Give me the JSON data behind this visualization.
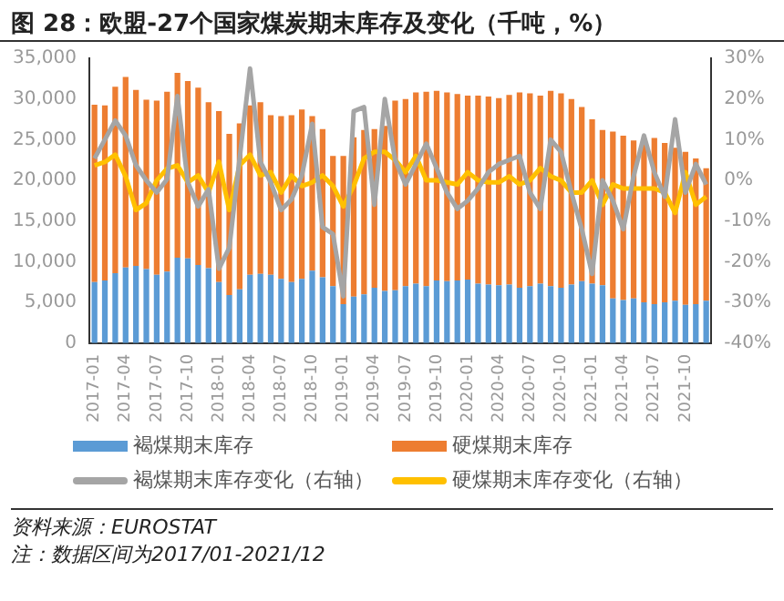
{
  "chart_data": {
    "type": "bar",
    "stacked": true,
    "title": "图 28：欧盟-27个国家煤炭期末库存及变化（千吨，%）",
    "categories": [
      "2017-01",
      null,
      null,
      "2017-04",
      null,
      null,
      "2017-07",
      null,
      null,
      "2017-10",
      null,
      null,
      "2018-01",
      null,
      null,
      "2018-04",
      null,
      null,
      "2018-07",
      null,
      null,
      "2018-10",
      null,
      null,
      "2019-01",
      null,
      null,
      "2019-04",
      null,
      null,
      "2019-07",
      null,
      null,
      "2019-10",
      null,
      null,
      "2020-01",
      null,
      null,
      "2020-04",
      null,
      null,
      "2020-07",
      null,
      null,
      "2020-10",
      null,
      null,
      "2021-01",
      null,
      null,
      "2021-04",
      null,
      null,
      "2021-07",
      null,
      null,
      "2021-10",
      null,
      null
    ],
    "series": [
      {
        "name": "褐煤期末库存",
        "color": "#5b9bd5",
        "values": [
          7500,
          7700,
          8600,
          9300,
          9500,
          9100,
          8400,
          8800,
          10500,
          10400,
          9600,
          9200,
          7500,
          5900,
          6600,
          8400,
          8500,
          8400,
          7900,
          7500,
          7900,
          8900,
          8100,
          7000,
          4800,
          5700,
          6000,
          6800,
          6400,
          6500,
          7000,
          7300,
          7000,
          7700,
          7600,
          7700,
          7800,
          7300,
          7200,
          7100,
          7200,
          6800,
          7000,
          7300,
          7000,
          6800,
          7200,
          7600,
          7300,
          7100,
          5500,
          5300,
          5500,
          5000,
          4800,
          5000,
          5200,
          4700,
          4800,
          5200
        ]
      },
      {
        "name": "硬煤期末库存",
        "color": "#ed7d31",
        "values": [
          21800,
          21500,
          22900,
          23400,
          21600,
          20800,
          21400,
          22100,
          22700,
          21800,
          21800,
          20400,
          21000,
          19800,
          20400,
          20800,
          21100,
          19600,
          20000,
          20500,
          20800,
          19000,
          18200,
          16000,
          18200,
          19600,
          20200,
          19500,
          20300,
          23300,
          23000,
          23500,
          23900,
          23300,
          23200,
          22900,
          22600,
          23100,
          23100,
          23000,
          23300,
          24000,
          23700,
          23100,
          24000,
          23900,
          22800,
          21400,
          20200,
          19100,
          20500,
          20200,
          19400,
          19700,
          20400,
          19600,
          18800,
          18800,
          17900,
          16300
        ]
      },
      {
        "name": "褐煤期末库存变化（右轴）",
        "type": "line",
        "axis": "y2",
        "color": "#a5a5a5",
        "values": [
          5.4,
          10,
          14.7,
          11,
          3.7,
          0,
          -3,
          0.3,
          20.7,
          -0.5,
          -6.4,
          -2.2,
          -21.7,
          -16.6,
          5.4,
          27.5,
          4.6,
          -0.5,
          -7.3,
          -4.7,
          1.2,
          13.9,
          -11.5,
          -13.2,
          -28.5,
          17,
          18,
          -6,
          20,
          5,
          -1,
          4,
          9,
          3,
          -3,
          -7,
          -5,
          -2,
          2,
          4,
          5,
          6,
          -3,
          -7,
          10,
          7,
          -3,
          -12,
          -23,
          0,
          -5,
          -12,
          1,
          11,
          2,
          -4,
          15,
          -3,
          4,
          -1
        ]
      },
      {
        "name": "硬煤期末库存变化（右轴）",
        "type": "line",
        "axis": "y2",
        "color": "#ffc000",
        "values": [
          3.7,
          4.5,
          6.3,
          1,
          -7.3,
          -5.6,
          0,
          2.9,
          3.7,
          -0.5,
          1.2,
          -3,
          4.6,
          -7.3,
          3.7,
          6.3,
          1.2,
          2,
          -3,
          1.2,
          -1.4,
          -0.5,
          1.2,
          -1.4,
          -6.4,
          -1.4,
          5.4,
          7,
          7,
          5,
          2,
          6,
          0,
          0,
          -0.5,
          -1,
          2,
          0,
          -0.5,
          -0.5,
          1,
          -1,
          0,
          3,
          1,
          0,
          -3,
          -3,
          0,
          -6,
          -1,
          -2,
          -2,
          -2,
          -2,
          -3,
          -8,
          2,
          -6,
          -4
        ]
      }
    ],
    "ylim": [
      0,
      35000
    ],
    "yticks": [
      0,
      {
        "value": 5000,
        "label": "5,000"
      },
      {
        "value": 10000,
        "label": "10,000"
      },
      {
        "value": 15000,
        "label": "15,000"
      },
      {
        "value": 20000,
        "label": "20,000"
      },
      {
        "value": 25000,
        "label": "25,000"
      },
      {
        "value": 30000,
        "label": "30,000"
      },
      {
        "value": 35000,
        "label": "35,000"
      }
    ],
    "y2lim": [
      -40,
      30
    ],
    "y2ticks": [
      {
        "value": -40,
        "label": "-40%"
      },
      {
        "value": -30,
        "label": "-30%"
      },
      {
        "value": -20,
        "label": "-20%"
      },
      {
        "value": -10,
        "label": "-10%"
      },
      {
        "value": 0,
        "label": "0%"
      },
      {
        "value": 10,
        "label": "10%"
      },
      {
        "value": 20,
        "label": "20%"
      },
      {
        "value": 30,
        "label": "30%"
      }
    ],
    "grid": false,
    "legend": "bottom",
    "marker": "none",
    "line_style": "solid",
    "annotations": [
      "资料来源：EUROSTAT",
      "注：数据区间为2017/01-2021/12"
    ]
  }
}
